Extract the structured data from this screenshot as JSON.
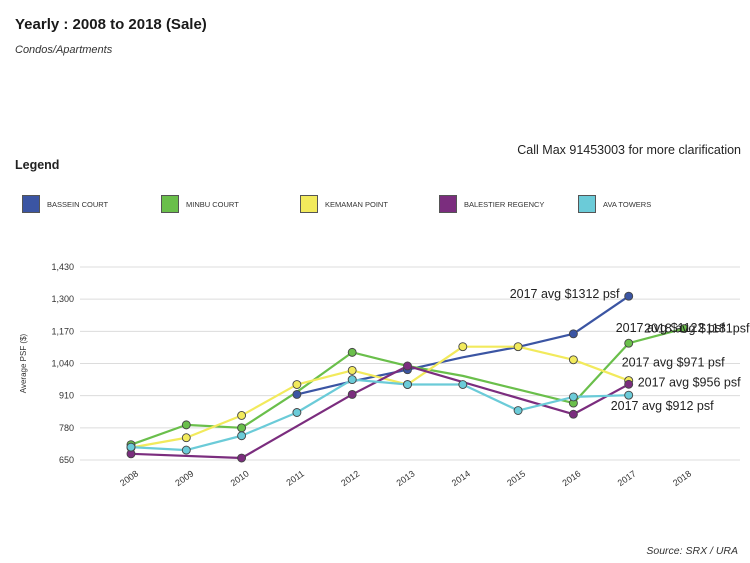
{
  "title": "Yearly : 2008 to 2018 (Sale)",
  "subtitle": "Condos/Apartments",
  "note": "Call Max 91453003 for more clarification",
  "legend_title": "Legend",
  "source": "Source: SRX / URA",
  "chart_data": {
    "type": "line",
    "ylabel": "Average PSF ($)",
    "ylim": [
      650,
      1430
    ],
    "yticks": [
      650,
      780,
      910,
      1040,
      1170,
      1300,
      1430
    ],
    "ytick_labels": [
      "650",
      "780",
      "910",
      "1,040",
      "1,170",
      "1,300",
      "1,430"
    ],
    "categories": [
      "2008",
      "2009",
      "2010",
      "2011",
      "2012",
      "2013",
      "2014",
      "2015",
      "2016",
      "2017",
      "2018"
    ],
    "grid": true,
    "series": [
      {
        "name": "BASSEIN COURT",
        "color": "#3b55a3",
        "values": [
          null,
          null,
          null,
          915,
          968,
          1015,
          1065,
          1107,
          1160,
          1312,
          null
        ],
        "markers": [
          false,
          false,
          false,
          true,
          false,
          true,
          false,
          false,
          true,
          true,
          false
        ]
      },
      {
        "name": "MINBU COURT",
        "color": "#6abf4b",
        "values": [
          712,
          792,
          780,
          925,
          1085,
          1030,
          990,
          935,
          880,
          1122,
          1181
        ],
        "markers": [
          true,
          true,
          true,
          false,
          true,
          false,
          false,
          false,
          true,
          true,
          true
        ]
      },
      {
        "name": "KEMAMAN POINT",
        "color": "#f2ea5c",
        "values": [
          700,
          740,
          830,
          955,
          1012,
          955,
          1108,
          1108,
          1055,
          971,
          null
        ],
        "markers": [
          true,
          true,
          true,
          true,
          true,
          true,
          true,
          true,
          true,
          true,
          false
        ]
      },
      {
        "name": "BALESTIER REGENCY",
        "color": "#7b2d7e",
        "values": [
          675,
          null,
          658,
          null,
          915,
          1030,
          null,
          null,
          835,
          956,
          null
        ],
        "markers": [
          true,
          false,
          true,
          false,
          true,
          true,
          false,
          false,
          true,
          true,
          false
        ]
      },
      {
        "name": "AVA TOWERS",
        "color": "#6bcbd8",
        "values": [
          702,
          690,
          748,
          842,
          975,
          955,
          955,
          850,
          905,
          912,
          null
        ],
        "markers": [
          true,
          true,
          true,
          true,
          true,
          true,
          true,
          true,
          true,
          true,
          false
        ]
      }
    ],
    "annotations": [
      {
        "text": "2017 avg $1312 psf",
        "x": "2017",
        "y": 1312
      },
      {
        "text": "2018 avg $1181psf",
        "x": "2018",
        "y": 1181
      },
      {
        "text": "2017 avg $1122 psf",
        "x": "2017",
        "y": 1122
      },
      {
        "text": "2017 avg $971 psf",
        "x": "2017",
        "y": 971
      },
      {
        "text": "2017 avg $956 psf",
        "x": "2017",
        "y": 956
      },
      {
        "text": "2017 avg $912 psf",
        "x": "2017",
        "y": 912
      }
    ]
  }
}
